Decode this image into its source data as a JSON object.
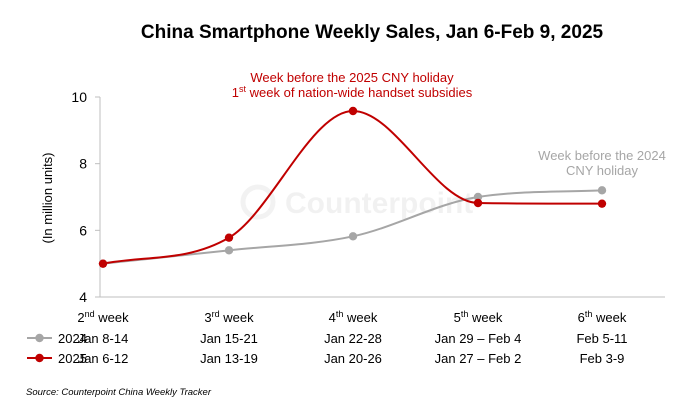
{
  "chart_data": {
    "type": "line",
    "title": "China Smartphone Weekly Sales, Jan 6-Feb 9, 2025",
    "xlabel": "",
    "ylabel": "(In million units)",
    "ylim": [
      4,
      10
    ],
    "yticks": [
      4,
      6,
      8,
      10
    ],
    "grid": false,
    "legend_position": "bottom-left",
    "categories": [
      {
        "num": "2",
        "sup": "nd",
        "rest": " week"
      },
      {
        "num": "3",
        "sup": "rd",
        "rest": " week"
      },
      {
        "num": "4",
        "sup": "th",
        "rest": " week"
      },
      {
        "num": "5",
        "sup": "th",
        "rest": " week"
      },
      {
        "num": "6",
        "sup": "th",
        "rest": " week"
      }
    ],
    "series": [
      {
        "name": "2024",
        "color": "#a6a6a6",
        "values": [
          5.0,
          5.4,
          5.82,
          7.0,
          7.2
        ],
        "date_labels": [
          "Jan 8-14",
          "Jan 15-21",
          "Jan 22-28",
          "Jan 29 – Feb 4",
          "Feb 5-11"
        ]
      },
      {
        "name": "2025",
        "color": "#c00000",
        "values": [
          5.0,
          5.78,
          9.58,
          6.82,
          6.8
        ],
        "date_labels": [
          "Jan 6-12",
          "Jan 13-19",
          "Jan 20-26",
          "Jan 27 – Feb 2",
          "Feb 3-9"
        ]
      }
    ],
    "annotations": {
      "red_line1": "Week before the 2025 CNY holiday",
      "red_line2_pre": "1",
      "red_line2_sup": "st",
      "red_line2_post": " week of nation-wide handset subsidies",
      "grey_line1": "Week before the 2024",
      "grey_line2": "CNY holiday"
    },
    "watermark": "Counterpoint",
    "source": "Source: Counterpoint China Weekly Tracker"
  }
}
